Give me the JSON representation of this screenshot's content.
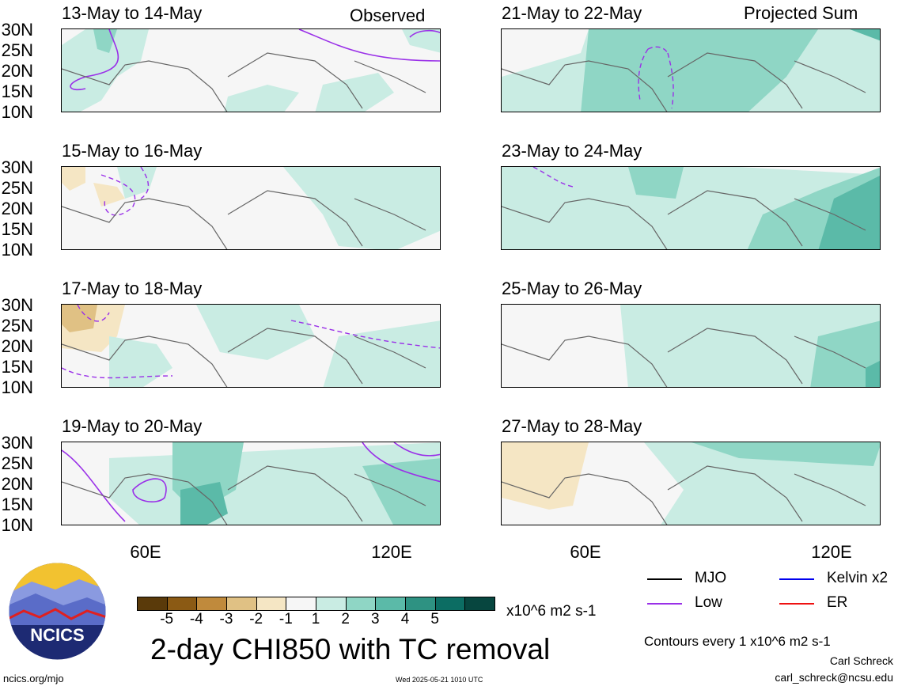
{
  "panels": [
    {
      "id": "p1",
      "title": "13-May to 14-May",
      "tag": "Observed"
    },
    {
      "id": "p2",
      "title": "15-May to 16-May",
      "tag": ""
    },
    {
      "id": "p3",
      "title": "17-May to 18-May",
      "tag": ""
    },
    {
      "id": "p4",
      "title": "19-May to 20-May",
      "tag": ""
    },
    {
      "id": "p5",
      "title": "21-May to 22-May",
      "tag": "Projected Sum"
    },
    {
      "id": "p6",
      "title": "23-May to 24-May",
      "tag": ""
    },
    {
      "id": "p7",
      "title": "25-May to 26-May",
      "tag": ""
    },
    {
      "id": "p8",
      "title": "27-May to 28-May",
      "tag": ""
    }
  ],
  "lat_labels": [
    "30N",
    "25N",
    "20N",
    "15N",
    "10N"
  ],
  "lon_labels": [
    "60E",
    "120E"
  ],
  "colorbar": {
    "colors": [
      "#5a3a0a",
      "#8b5a14",
      "#c08a3c",
      "#e0c184",
      "#f5e6c4",
      "#f6f6f6",
      "#c9ece3",
      "#8fd6c5",
      "#5bbaa8",
      "#2e9282",
      "#0c6d63",
      "#07463f"
    ],
    "labels": [
      "-5",
      "-4",
      "-3",
      "-2",
      "-1",
      "1",
      "2",
      "3",
      "4",
      "5"
    ],
    "units": "x10^6 m2 s-1"
  },
  "main_title": "2-day CHI850 with TC removal",
  "legend": [
    {
      "label": "MJO",
      "color": "#000000"
    },
    {
      "label": "Kelvin x2",
      "color": "#0000ee"
    },
    {
      "label": "Low",
      "color": "#9a30e8"
    },
    {
      "label": "ER",
      "color": "#ee1111"
    }
  ],
  "contour_note": "Contours every 1 x10^6 m2 s-1",
  "author": "Carl Schreck",
  "email": "carl_schreck@ncsu.edu",
  "url": "ncics.org/mjo",
  "timestamp": "Wed 2025-05-21 1010 UTC",
  "logo_text": "NCICS"
}
